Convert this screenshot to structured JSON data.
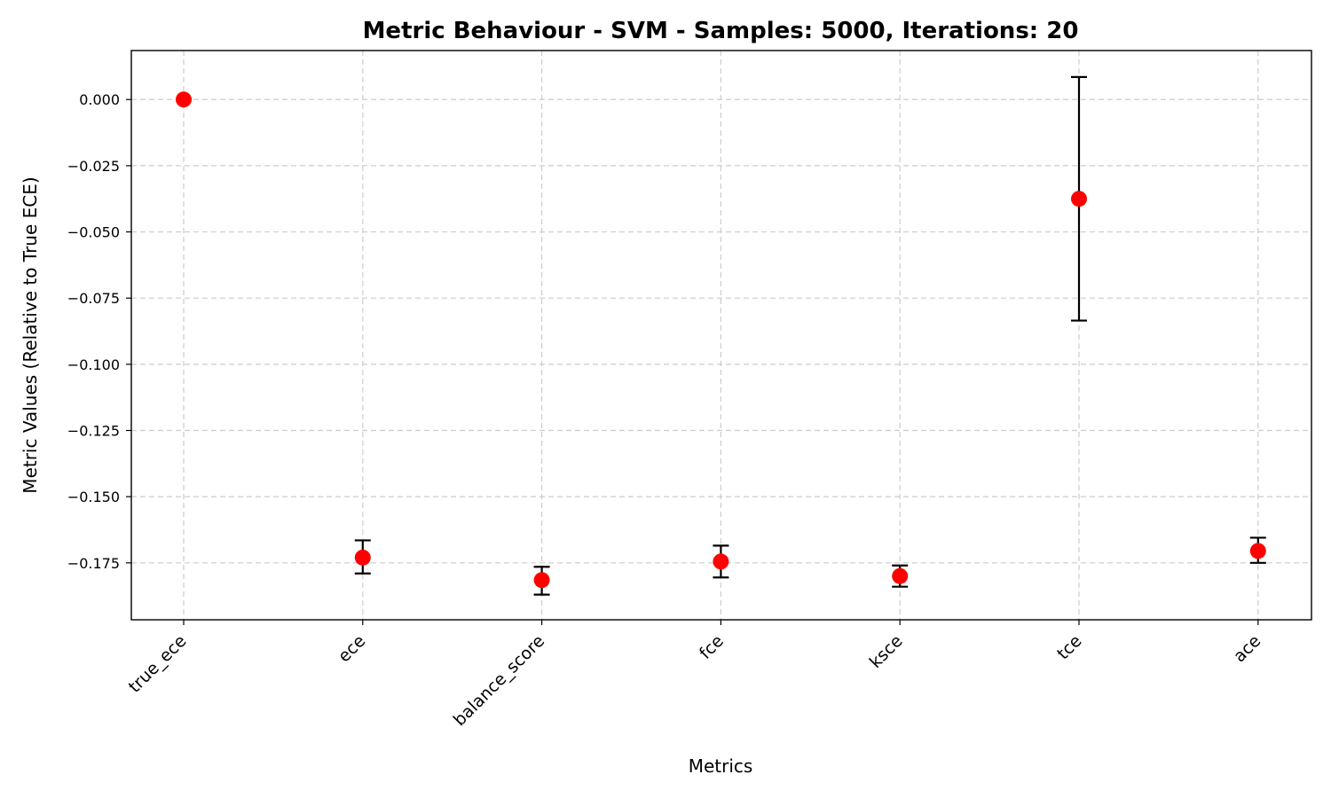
{
  "chart_data": {
    "type": "scatter",
    "title": "Metric Behaviour - SVM - Samples: 5000, Iterations: 20",
    "xlabel": "Metrics",
    "ylabel": "Metric Values (Relative to True ECE)",
    "categories": [
      "true_ece",
      "ece",
      "balance_score",
      "fce",
      "ksce",
      "tce",
      "ace"
    ],
    "values": [
      0.0,
      -0.173,
      -0.1815,
      -0.1745,
      -0.18,
      -0.0375,
      -0.1705
    ],
    "error_low": [
      0.0,
      -0.179,
      -0.187,
      -0.1805,
      -0.184,
      -0.0835,
      -0.175
    ],
    "error_high": [
      0.0,
      -0.1665,
      -0.1765,
      -0.1685,
      -0.176,
      0.0085,
      -0.1655
    ],
    "ylim": [
      -0.1965,
      0.0185
    ],
    "yticks": [
      0.0,
      -0.025,
      -0.05,
      -0.075,
      -0.1,
      -0.125,
      -0.15,
      -0.175
    ],
    "ytick_labels": [
      "0.000",
      "−0.025",
      "−0.050",
      "−0.075",
      "−0.100",
      "−0.125",
      "−0.150",
      "−0.175"
    ],
    "grid": true,
    "marker_color": "#ff0000",
    "errorbar_color": "#000000"
  }
}
